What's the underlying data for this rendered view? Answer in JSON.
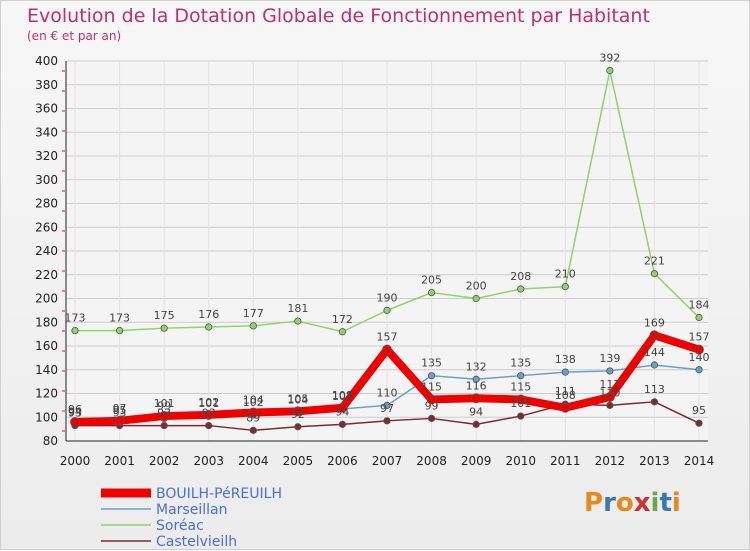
{
  "header": {
    "title": "Evolution de la Dotation Globale de Fonctionnement par Habitant",
    "subtitle": "(en € et par an)"
  },
  "logo": {
    "text": "Proxiti",
    "colors": [
      "#e8891d",
      "#3a78b5",
      "#e8891d",
      "#d03030",
      "#6aa84f",
      "#3a78b5",
      "#e8891d"
    ]
  },
  "chart_data": {
    "type": "line",
    "x": [
      2000,
      2001,
      2002,
      2003,
      2004,
      2005,
      2006,
      2007,
      2008,
      2009,
      2010,
      2011,
      2012,
      2013,
      2014
    ],
    "ylim": [
      80,
      400
    ],
    "yticks": [
      80,
      100,
      120,
      140,
      160,
      180,
      200,
      220,
      240,
      260,
      280,
      300,
      320,
      340,
      360,
      380,
      400
    ],
    "grid": true,
    "legend_position": "bottom-left",
    "series": [
      {
        "name": "Soréac",
        "color": "#8fd36a",
        "values": [
          173,
          173,
          175,
          176,
          177,
          181,
          172,
          190,
          205,
          200,
          208,
          210,
          392,
          221,
          184
        ],
        "labels": [
          "173",
          "173",
          "175",
          "176",
          "177",
          "181",
          "172",
          "190",
          "205",
          "200",
          "208",
          "210",
          "392",
          "221",
          "184"
        ]
      },
      {
        "name": "Marseillan",
        "color": "#6c9ec9",
        "values": [
          94,
          95,
          99,
          101,
          102,
          104,
          107,
          110,
          135,
          132,
          135,
          138,
          139,
          144,
          140
        ],
        "labels": [
          "94",
          "95",
          "99",
          "101",
          "102",
          "104",
          "107",
          "110",
          "135",
          "132",
          "135",
          "138",
          "139",
          "144",
          "140"
        ]
      },
      {
        "name": "Castelvieilh",
        "color": "#7a2b33",
        "values": [
          93,
          93,
          93,
          93,
          89,
          92,
          94,
          97,
          99,
          94,
          101,
          111,
          110,
          113,
          95
        ],
        "labels": [
          "93",
          "93",
          "93",
          "93",
          "89",
          "92",
          "94",
          "97",
          "99",
          "94",
          "101",
          "111",
          "110",
          "113",
          "95"
        ]
      },
      {
        "name": "BOUILH-PéREUILH",
        "color": "#ee0000",
        "values": [
          96,
          97,
          101,
          102,
          104,
          105,
          108,
          157,
          115,
          116,
          115,
          108,
          117,
          169,
          157
        ],
        "labels": [
          "96",
          "97",
          "101",
          "102",
          "104",
          "105",
          "108",
          "157",
          "115",
          "116",
          "115",
          "108",
          "117",
          "169",
          "157"
        ]
      }
    ],
    "legend": [
      "BOUILH-PéREUILH",
      "Marseillan",
      "Soréac",
      "Castelvieilh"
    ]
  }
}
